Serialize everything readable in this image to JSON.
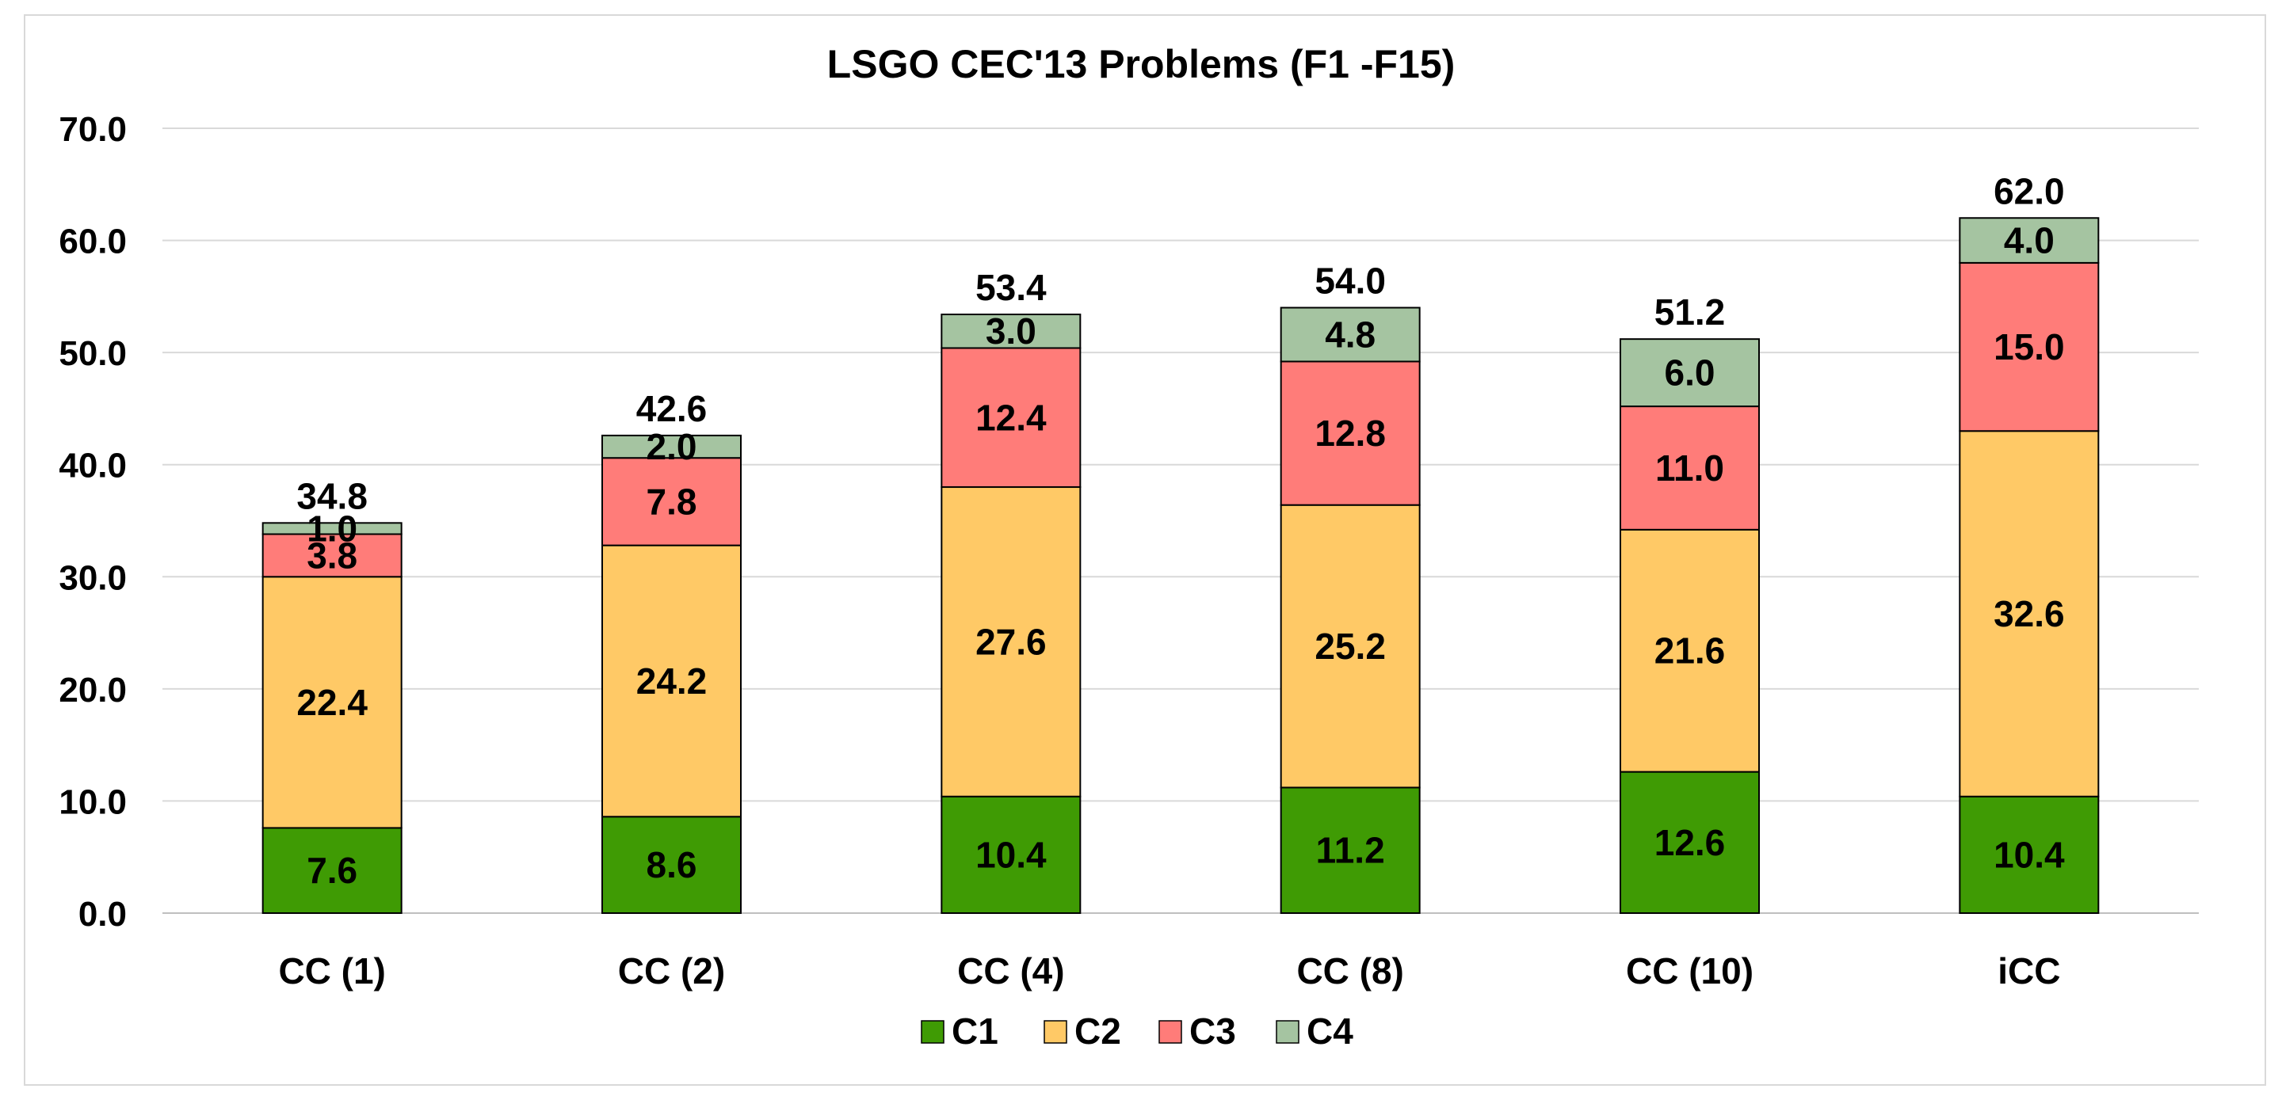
{
  "chart_data": {
    "type": "bar",
    "stacked": true,
    "title": "LSGO CEC'13 Problems (F1 -F15)",
    "xlabel": "",
    "ylabel": "",
    "ylim": [
      0,
      70
    ],
    "yticks": [
      "0.0",
      "10.0",
      "20.0",
      "30.0",
      "40.0",
      "50.0",
      "60.0",
      "70.0"
    ],
    "grid": true,
    "legend_position": "bottom",
    "categories": [
      "CC (1)",
      "CC (2)",
      "CC (4)",
      "CC (8)",
      "CC (10)",
      "iCC"
    ],
    "series": [
      {
        "name": "C1",
        "color": "#3f9b04",
        "values": [
          7.6,
          8.6,
          10.4,
          11.2,
          12.6,
          10.4
        ],
        "labels": [
          "7.6",
          "8.6",
          "10.4",
          "11.2",
          "12.6",
          "10.4"
        ]
      },
      {
        "name": "C2",
        "color": "#ffc966",
        "values": [
          22.4,
          24.2,
          27.6,
          25.2,
          21.6,
          32.6
        ],
        "labels": [
          "22.4",
          "24.2",
          "27.6",
          "25.2",
          "21.6",
          "32.6"
        ]
      },
      {
        "name": "C3",
        "color": "#ff7c79",
        "values": [
          3.8,
          7.8,
          12.4,
          12.8,
          11.0,
          15.0
        ],
        "labels": [
          "3.8",
          "7.8",
          "12.4",
          "12.8",
          "11.0",
          "15.0"
        ]
      },
      {
        "name": "C4",
        "color": "#a5c4a1",
        "values": [
          1.0,
          2.0,
          3.0,
          4.8,
          6.0,
          4.0
        ],
        "labels": [
          "1.0",
          "2.0",
          "3.0",
          "4.8",
          "6.0",
          "4.0"
        ]
      }
    ],
    "totals": [
      34.8,
      42.6,
      53.4,
      54.0,
      51.2,
      62.0
    ],
    "total_labels": [
      "34.8",
      "42.6",
      "53.4",
      "54.0",
      "51.2",
      "62.0"
    ]
  }
}
